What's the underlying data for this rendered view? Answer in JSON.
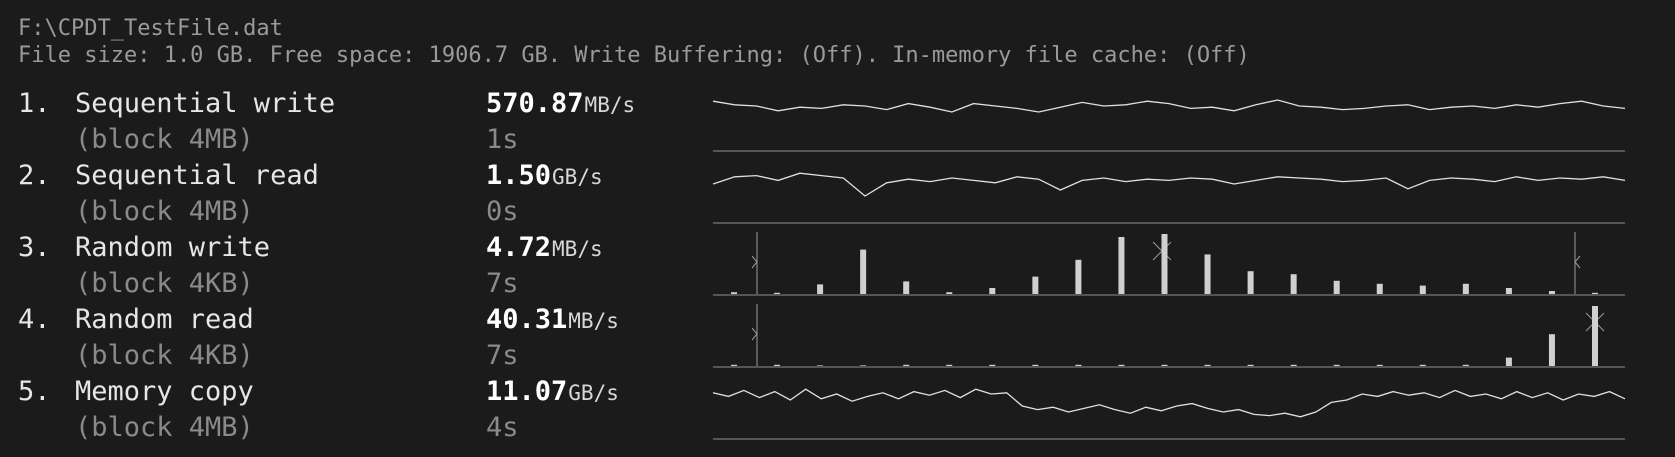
{
  "path": "F:\\CPDT_TestFile.dat",
  "info": "File size: 1.0 GB. Free space: 1906.7 GB. Write Buffering: (Off). In-memory file cache: (Off)",
  "tests": [
    {
      "number": "1.",
      "name": "Sequential write",
      "block": "(block 4MB)",
      "speed": "570.87",
      "unit": "MB/s",
      "time": "1s",
      "graph": {
        "type": "line",
        "values": [
          78,
          72,
          70,
          62,
          68,
          66,
          72,
          70,
          64,
          74,
          68,
          60,
          74,
          70,
          66,
          60,
          68,
          76,
          70,
          72,
          78,
          74,
          66,
          68,
          62,
          72,
          80,
          70,
          68,
          64,
          66,
          70,
          72,
          64,
          68,
          70,
          66,
          72,
          68,
          74,
          78,
          70,
          66
        ]
      }
    },
    {
      "number": "2.",
      "name": "Sequential read",
      "block": "(block 4MB)",
      "speed": "1.50",
      "unit": "GB/s",
      "time": "0s",
      "graph": {
        "type": "line",
        "values": [
          60,
          72,
          74,
          66,
          78,
          74,
          70,
          40,
          62,
          68,
          64,
          70,
          66,
          62,
          72,
          68,
          50,
          66,
          70,
          64,
          68,
          66,
          70,
          68,
          60,
          66,
          72,
          70,
          68,
          64,
          66,
          70,
          52,
          66,
          70,
          68,
          64,
          72,
          66,
          70,
          68,
          72,
          66
        ]
      }
    },
    {
      "number": "3.",
      "name": "Random write",
      "block": "(block 4KB)",
      "speed": "4.72",
      "unit": "MB/s",
      "time": "7s",
      "graph": {
        "type": "bar",
        "values": [
          3,
          2,
          16,
          74,
          21,
          3,
          10,
          29,
          57,
          95,
          100,
          66,
          38,
          33,
          22,
          17,
          14,
          17,
          10,
          5,
          2
        ]
      }
    },
    {
      "number": "4.",
      "name": "Random read",
      "block": "(block 4KB)",
      "speed": "40.31",
      "unit": "MB/s",
      "time": "7s",
      "graph": {
        "type": "bar",
        "values": [
          2,
          2,
          1,
          1,
          2,
          2,
          2,
          2,
          2,
          2,
          2,
          2,
          2,
          2,
          2,
          2,
          2,
          2,
          14,
          53,
          100
        ]
      }
    },
    {
      "number": "5.",
      "name": "Memory copy",
      "block": "(block 4MB)",
      "speed": "11.07",
      "unit": "GB/s",
      "time": "4s",
      "graph": {
        "type": "line",
        "values": [
          72,
          66,
          76,
          64,
          74,
          60,
          78,
          62,
          70,
          58,
          66,
          72,
          62,
          74,
          68,
          76,
          64,
          78,
          70,
          72,
          50,
          44,
          48,
          40,
          46,
          52,
          44,
          38,
          48,
          42,
          50,
          54,
          46,
          40,
          44,
          36,
          34,
          38,
          32,
          40,
          56,
          60,
          70,
          66,
          74,
          68,
          72,
          64,
          76,
          66,
          70,
          62,
          74,
          64,
          72,
          60,
          70,
          66,
          74,
          62
        ]
      }
    }
  ]
}
